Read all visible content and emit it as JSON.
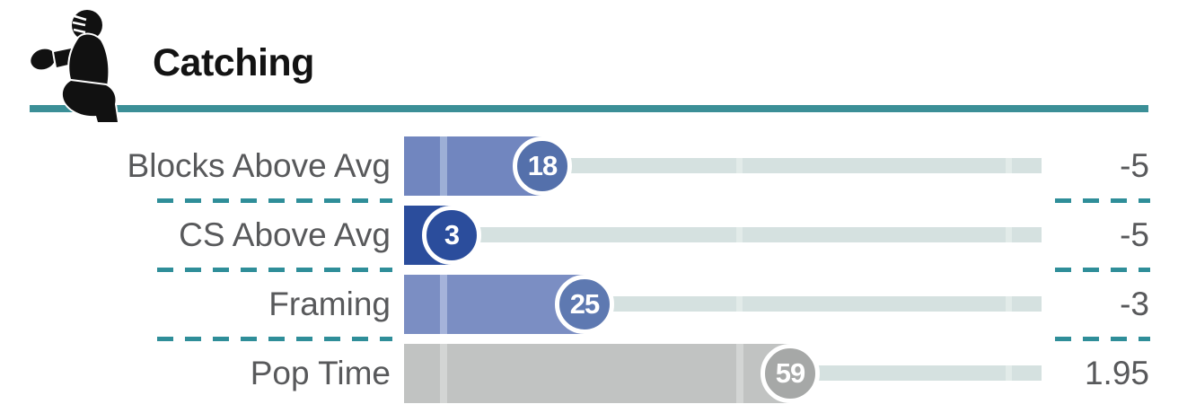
{
  "header": {
    "title": "Catching",
    "icon": "catcher-silhouette",
    "accent_color": "#3b8f97"
  },
  "track": {
    "color": "#d5e1e0",
    "mark_color": "#e2ebe9",
    "marks_percent": [
      5.6,
      52.1,
      94.4
    ]
  },
  "rows": [
    {
      "label": "Blocks Above Avg",
      "percentile": 18,
      "value": "-5",
      "bar_color": "#7186bf",
      "stripe_color": "#9dafd6",
      "circle_color": "#5470ab"
    },
    {
      "label": "CS Above Avg",
      "percentile": 3,
      "value": "-5",
      "bar_color": "#2b4d9c",
      "stripe_color": "#3c5ea8",
      "circle_color": "#2b4d9c"
    },
    {
      "label": "Framing",
      "percentile": 25,
      "value": "-3",
      "bar_color": "#7b8ec3",
      "stripe_color": "#a5b3da",
      "circle_color": "#5e79b1"
    },
    {
      "label": "Pop Time",
      "percentile": 59,
      "value": "1.95",
      "bar_color": "#c1c3c2",
      "stripe_color": "#d3d5d4",
      "circle_color": "#a6a8a7"
    }
  ],
  "chart_data": {
    "type": "bar",
    "orientation": "horizontal",
    "title": "Catching",
    "categories": [
      "Blocks Above Avg",
      "CS Above Avg",
      "Framing",
      "Pop Time"
    ],
    "series": [
      {
        "name": "Percentile",
        "values": [
          18,
          3,
          25,
          59
        ]
      },
      {
        "name": "Stat Value",
        "values": [
          -5,
          -5,
          -3,
          1.95
        ]
      }
    ],
    "xlim": [
      0,
      100
    ],
    "grid": "off",
    "legend": "none",
    "annotations": "background track has lighter marker ticks near the 5th, 50th and 95th percentile positions; circle badge at bar end shows percentile"
  }
}
